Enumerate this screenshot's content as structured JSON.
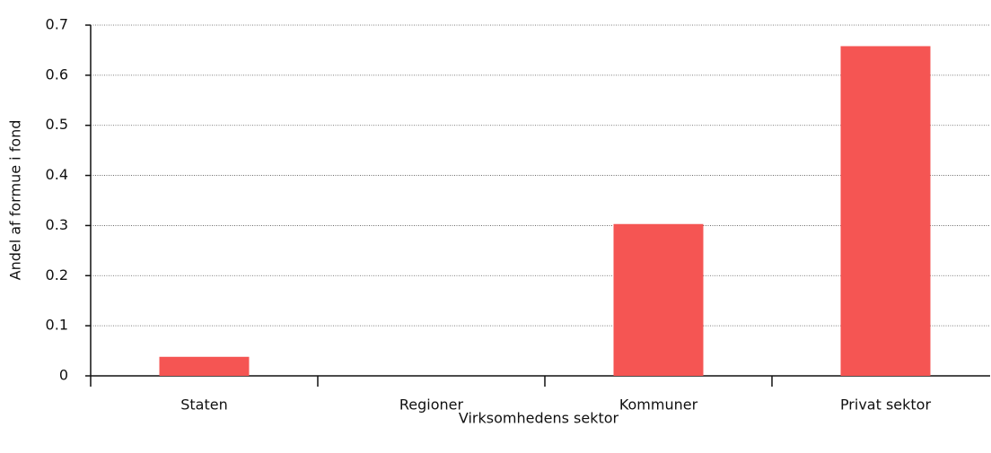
{
  "chart_data": {
    "type": "bar",
    "x_label": "Virksomhedens sektor",
    "y_label": "Andel af formue i fond",
    "categories": [
      "Staten",
      "Regioner",
      "Kommuner",
      "Privat sektor"
    ],
    "values": [
      0.038,
      0,
      0.303,
      0.658
    ],
    "color": "#f55553",
    "ylim": [
      0,
      0.7
    ],
    "yticks": [
      0,
      0.1,
      0.2,
      0.3,
      0.4,
      0.5,
      0.6,
      0.7
    ],
    "grid": true
  }
}
